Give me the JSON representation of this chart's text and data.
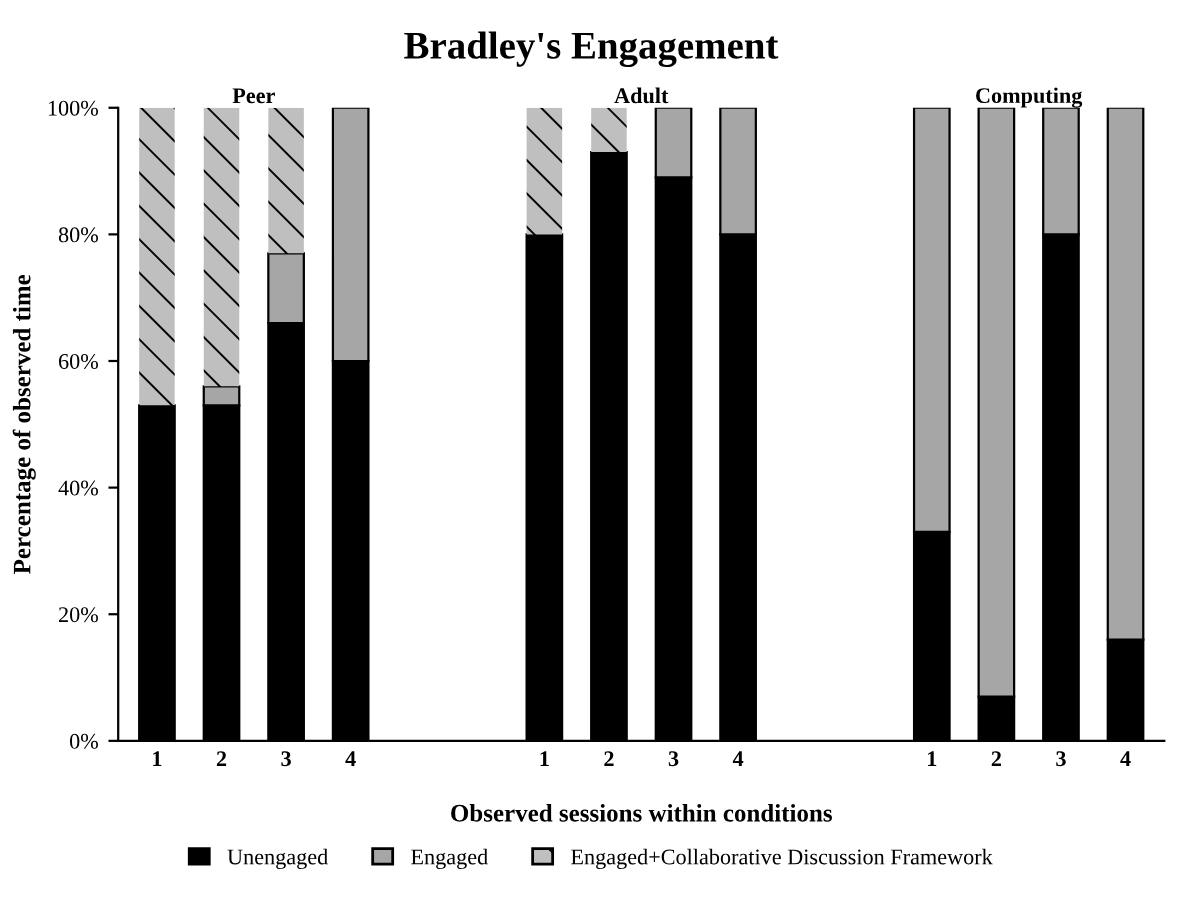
{
  "chart_data": {
    "type": "bar",
    "title": "Bradley's Engagement",
    "xlabel": "Observed sessions within conditions",
    "ylabel": "Percentage of observed time",
    "categories": [
      "1",
      "2",
      "3",
      "4",
      null,
      null,
      "1",
      "2",
      "3",
      "4",
      null,
      null,
      "1",
      "2",
      "3",
      "4"
    ],
    "stacked": true,
    "series": [
      {
        "name": "Unengaged",
        "color": "#000000",
        "values": [
          53,
          53,
          66,
          60,
          null,
          null,
          80,
          93,
          89,
          80,
          null,
          null,
          33,
          7,
          80,
          16
        ]
      },
      {
        "name": "Engaged",
        "color": "#a6a6a6",
        "values": [
          0,
          3,
          11,
          40,
          null,
          null,
          0,
          0,
          11,
          20,
          null,
          null,
          67,
          93,
          20,
          84
        ]
      },
      {
        "name": "Engaged+Collaborative Discussion Framework",
        "color": "#bfbfbf",
        "values": [
          47,
          44,
          23,
          0,
          null,
          null,
          20,
          7,
          0,
          0,
          null,
          null,
          0,
          0,
          0,
          0
        ]
      }
    ],
    "annotations": [
      "Peer",
      "Adult",
      "Computing"
    ],
    "ylim": [
      0,
      100
    ],
    "yticks": [
      {
        "value": 0,
        "label": "0%"
      },
      {
        "value": 20,
        "label": "20%"
      },
      {
        "value": 40,
        "label": "40%"
      },
      {
        "value": 60,
        "label": "60%"
      },
      {
        "value": 80,
        "label": "80%"
      },
      {
        "value": 100,
        "label": "100%"
      }
    ],
    "grid": false,
    "legend": "bottom"
  }
}
